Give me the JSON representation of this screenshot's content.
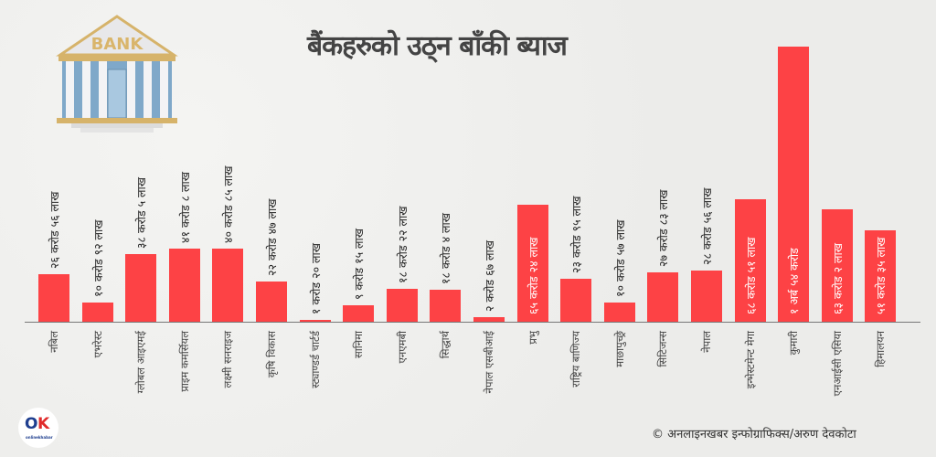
{
  "header": {
    "title": "बैंकहरुको उठ्न बाँकी ब्याज",
    "bank_sign": "BANK"
  },
  "footer": {
    "credit": "© अनलाइनखबर इन्फोग्राफिक्स/अरुण देवकोटा",
    "logo_text": "OK",
    "logo_subtext": "onlinekhabar"
  },
  "colors": {
    "bar": "#fd4245",
    "axis": "#777777",
    "title": "#444444"
  },
  "chart_data": {
    "type": "bar",
    "title": "बैंकहरुको उठ्न बाँकी ब्याज",
    "xlabel": "",
    "ylabel": "",
    "unit": "NPR (करोड)",
    "grid": false,
    "legend": "none",
    "categories": [
      "नबिल",
      "एभरेस्ट",
      "ग्लोबल आइएमई",
      "प्राइम कमर्सियल",
      "लक्ष्मी सनराइज",
      "कृषि विकास",
      "स्ट्याण्डर्ड चार्टर्ड",
      "सानिमा",
      "एनएमबी",
      "सिद्धार्थ",
      "नेपाल एसबीआई",
      "प्रभु",
      "राष्ट्रिय बाणिज्य",
      "माछापुच्छ्रे",
      "सिटिजन्स",
      "नेपाल",
      "इन्भेस्टमेन्ट मेगा",
      "कुमारी",
      "एनआईसी एसिया",
      "हिमालयन"
    ],
    "labels": [
      "२६ करोड ५६ लाख",
      "१० करोड ९२ लाख",
      "३८ करोड ५ लाख",
      "४१ करोड ८ लाख",
      "४० करोड ८५ लाख",
      "२२ करोड ४७ लाख",
      "१ करोड २० लाख",
      "९ करोड १५ लाख",
      "१८ करोड २२ लाख",
      "१८ करोड ४ लाख",
      "२ करोड ६७ लाख",
      "६५ करोड २४ लाख",
      "२३ करोड ९५ लाख",
      "१० करोड ५७ लाख",
      "२७ करोड ८३ लाख",
      "२८ करोड ५६ लाख",
      "६८ करोड ५१ लाख",
      "१ अर्ब ५४ करोड",
      "६३ करोड २ लाख",
      "५१ करोड ३५ लाख"
    ],
    "values": [
      26.56,
      10.92,
      38.05,
      41.08,
      40.85,
      22.47,
      1.2,
      9.15,
      18.22,
      18.04,
      2.67,
      65.24,
      23.95,
      10.57,
      27.83,
      28.56,
      68.51,
      154,
      63.02,
      51.35
    ],
    "label_inside": [
      false,
      false,
      false,
      false,
      false,
      false,
      false,
      false,
      false,
      false,
      false,
      true,
      false,
      false,
      false,
      false,
      true,
      true,
      true,
      true
    ]
  }
}
